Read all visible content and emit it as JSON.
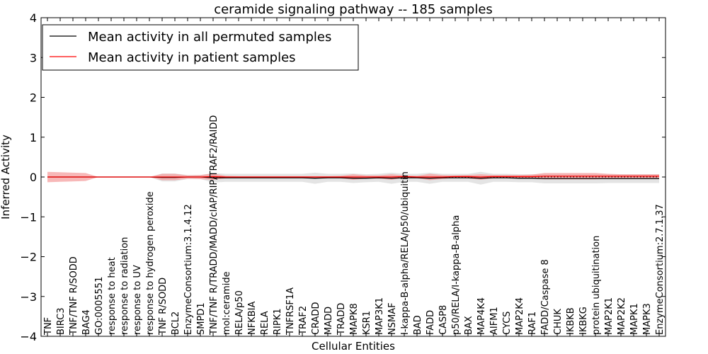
{
  "chart_data": {
    "type": "line",
    "title": "ceramide signaling pathway -- 185 samples",
    "xlabel": "Cellular Entities",
    "ylabel": "Inferred Activity",
    "ylim": [
      -4,
      4
    ],
    "yticks": [
      -4,
      -3,
      -2,
      -1,
      0,
      1,
      2,
      3,
      4
    ],
    "legend_position": "top-left",
    "categories": [
      "TNF",
      "BIRC3",
      "TNF/TNF R/SODD",
      "BAG4",
      "GO:0005551",
      "response to heat",
      "response to radiation",
      "response to UV",
      "response to hydrogen peroxide",
      "TNF R/SODD",
      "BCL2",
      "EnzymeConsortium:3.1.4.12",
      "SMPD1",
      "TNF/TNF R/TRADD/MADD/cIAP/RIP/TRAF2/RAIDD",
      "mol:ceramide",
      "RELA/p50",
      "NFKBIA",
      "RELA",
      "RIPK1",
      "TNFRSF1A",
      "TRAF2",
      "CRADD",
      "MADD",
      "TRADD",
      "MAPK8",
      "KSR1",
      "MAP3K1",
      "NSMAF",
      "I-kappa-B-alpha/RELA/p50/ubiquitin",
      "BAD",
      "FADD",
      "CASP8",
      "p50/RELA/I-kappa-B-alpha",
      "BAX",
      "MAP4K4",
      "AIFM1",
      "CYCS",
      "MAP2K4",
      "RAF1",
      "FADD/Caspase 8",
      "CHUK",
      "IKBKB",
      "IKBKG",
      "protein ubiquitination",
      "MAP2K1",
      "MAP2K2",
      "MAPK1",
      "MAPK3",
      "EnzymeConsortium:2.7.1.37"
    ],
    "series": [
      {
        "name": "Mean activity in all permuted samples",
        "color": "#000000",
        "band_color": "#d9d9d9",
        "values": [
          0,
          0,
          0,
          0,
          0,
          0,
          0,
          0,
          0,
          -0.01,
          -0.01,
          0,
          0,
          -0.02,
          -0.02,
          -0.02,
          -0.02,
          -0.02,
          -0.02,
          -0.02,
          -0.02,
          -0.03,
          -0.02,
          -0.02,
          -0.03,
          -0.03,
          -0.02,
          -0.03,
          -0.02,
          -0.02,
          -0.03,
          -0.02,
          -0.02,
          -0.02,
          -0.03,
          -0.02,
          -0.02,
          -0.03,
          -0.03,
          -0.04,
          -0.04,
          -0.04,
          -0.04,
          -0.04,
          -0.04,
          -0.04,
          -0.04,
          -0.04,
          -0.04
        ],
        "band": [
          0,
          0,
          0,
          0,
          0,
          0,
          0,
          0,
          0,
          0.1,
          0.1,
          0.05,
          0.05,
          0.12,
          0.1,
          0.1,
          0.1,
          0.1,
          0.1,
          0.1,
          0.1,
          0.14,
          0.1,
          0.1,
          0.12,
          0.1,
          0.1,
          0.14,
          0.1,
          0.1,
          0.14,
          0.1,
          0.1,
          0.1,
          0.16,
          0.1,
          0.1,
          0.1,
          0.1,
          0.12,
          0.12,
          0.12,
          0.12,
          0.12,
          0.11,
          0.11,
          0.11,
          0.11,
          0.11
        ]
      },
      {
        "name": "Mean activity in patient samples",
        "color": "#ff0000",
        "band_color": "#f4a0a0",
        "values": [
          0,
          0,
          0,
          0,
          0,
          0,
          0,
          0,
          0,
          0,
          0,
          0,
          0,
          0.01,
          0,
          0,
          0,
          0,
          0,
          0,
          0,
          0,
          0,
          0,
          0,
          0,
          0,
          0,
          0.01,
          0,
          0,
          0,
          0.01,
          0.01,
          0,
          0.01,
          0.01,
          0.01,
          0.01,
          0.02,
          0.02,
          0.02,
          0.02,
          0.02,
          0.02,
          0.02,
          0.02,
          0.02,
          0.02
        ],
        "band": [
          0.13,
          0.12,
          0.11,
          0.1,
          0,
          0,
          0,
          0,
          0,
          0.08,
          0.08,
          0.04,
          0.05,
          0.08,
          0.03,
          0.02,
          0.02,
          0.02,
          0.02,
          0.02,
          0.02,
          0.02,
          0.02,
          0.03,
          0.07,
          0.04,
          0.04,
          0.07,
          0.03,
          0.03,
          0.08,
          0.05,
          0.03,
          0.04,
          0.07,
          0.04,
          0.04,
          0.04,
          0.05,
          0.08,
          0.08,
          0.08,
          0.08,
          0.08,
          0.06,
          0.05,
          0.05,
          0.05,
          0.05
        ]
      }
    ]
  }
}
